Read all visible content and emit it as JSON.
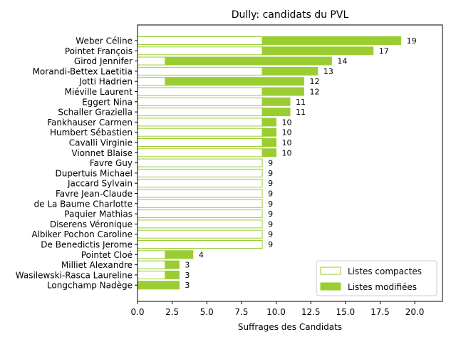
{
  "chart_data": {
    "type": "bar",
    "orientation": "horizontal",
    "stacked": true,
    "title": "Dully: candidats du PVL",
    "xlabel": "Suffrages des Candidats",
    "ylabel": "",
    "xlim": [
      0,
      22
    ],
    "xticks": [
      0.0,
      2.5,
      5.0,
      7.5,
      10.0,
      12.5,
      15.0,
      17.5,
      20.0
    ],
    "xtick_labels": [
      "0.0",
      "2.5",
      "5.0",
      "7.5",
      "10.0",
      "12.5",
      "15.0",
      "17.5",
      "20.0"
    ],
    "color": "#9acd32",
    "legend_position": "bottom-right",
    "categories": [
      "Weber Céline",
      "Pointet François",
      "Girod Jennifer",
      "Morandi-Bettex Laetitia",
      "Jotti Hadrien",
      "Miéville Laurent",
      "Eggert Nina",
      "Schaller Graziella",
      "Fankhauser Carmen",
      "Humbert Sébastien",
      "Cavalli Virginie",
      "Vionnet Blaise",
      "Favre Guy",
      "Dupertuis Michael",
      "Jaccard Sylvain",
      "Favre Jean-Claude",
      "de La Baume Charlotte",
      "Paquier Mathias",
      "Diserens Véronique",
      "Albiker Pochon Caroline",
      "De Benedictis Jerome",
      "Pointet Cloé",
      "Milliet Alexandre",
      "Wasilewski-Rasca Laureline",
      "Longchamp Nadège"
    ],
    "series": [
      {
        "name": "Listes compactes",
        "style": "outline",
        "values": [
          9,
          9,
          2,
          9,
          2,
          9,
          9,
          9,
          9,
          9,
          9,
          9,
          9,
          9,
          9,
          9,
          9,
          9,
          9,
          9,
          9,
          2,
          2,
          2,
          0
        ]
      },
      {
        "name": "Listes modifiées",
        "style": "filled",
        "values": [
          10,
          8,
          12,
          4,
          10,
          3,
          2,
          2,
          1,
          1,
          1,
          1,
          0,
          0,
          0,
          0,
          0,
          0,
          0,
          0,
          0,
          2,
          1,
          1,
          3
        ]
      }
    ],
    "totals": [
      19,
      17,
      14,
      13,
      12,
      12,
      11,
      11,
      10,
      10,
      10,
      10,
      9,
      9,
      9,
      9,
      9,
      9,
      9,
      9,
      9,
      4,
      3,
      3,
      3
    ]
  }
}
